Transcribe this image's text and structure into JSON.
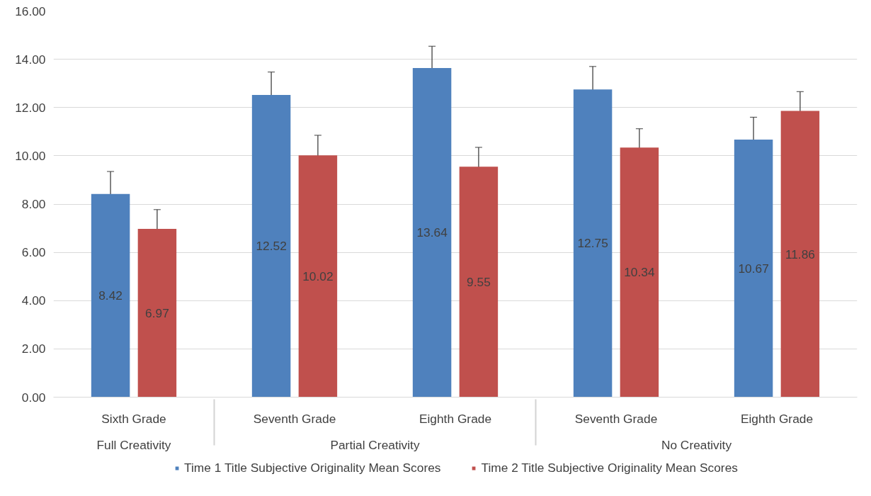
{
  "chart_data": {
    "type": "bar",
    "categories": [
      "Sixth Grade",
      "Seventh Grade",
      "Eighth Grade",
      "Seventh Grade",
      "Eighth Grade"
    ],
    "series": [
      {
        "name": "Time 1 Title Subjective Originality Mean Scores",
        "color": "#4f81bd",
        "values": [
          8.42,
          12.52,
          13.64,
          12.75,
          10.67
        ],
        "errors": [
          0.93,
          0.95,
          0.9,
          0.95,
          0.93
        ]
      },
      {
        "name": "Time 2 Title Subjective Originality Mean Scores",
        "color": "#c0504d",
        "values": [
          6.97,
          10.02,
          9.55,
          10.34,
          11.86
        ],
        "errors": [
          0.8,
          0.83,
          0.8,
          0.78,
          0.8
        ]
      }
    ],
    "ylim": [
      0,
      16
    ],
    "yticks": [
      {
        "value": 0,
        "label": "0.00"
      },
      {
        "value": 2,
        "label": "2.00"
      },
      {
        "value": 4,
        "label": "4.00"
      },
      {
        "value": 6,
        "label": "6.00"
      },
      {
        "value": 8,
        "label": "8.00"
      },
      {
        "value": 10,
        "label": "10.00"
      },
      {
        "value": 12,
        "label": "12.00"
      },
      {
        "value": 14,
        "label": "14.00"
      },
      {
        "value": 16,
        "label": "16.00"
      }
    ],
    "grid": "y",
    "legend": "bottom",
    "data_labels": true,
    "annotations": [
      "Full Creativity",
      "Partial Creativity",
      "No Creativity"
    ]
  }
}
